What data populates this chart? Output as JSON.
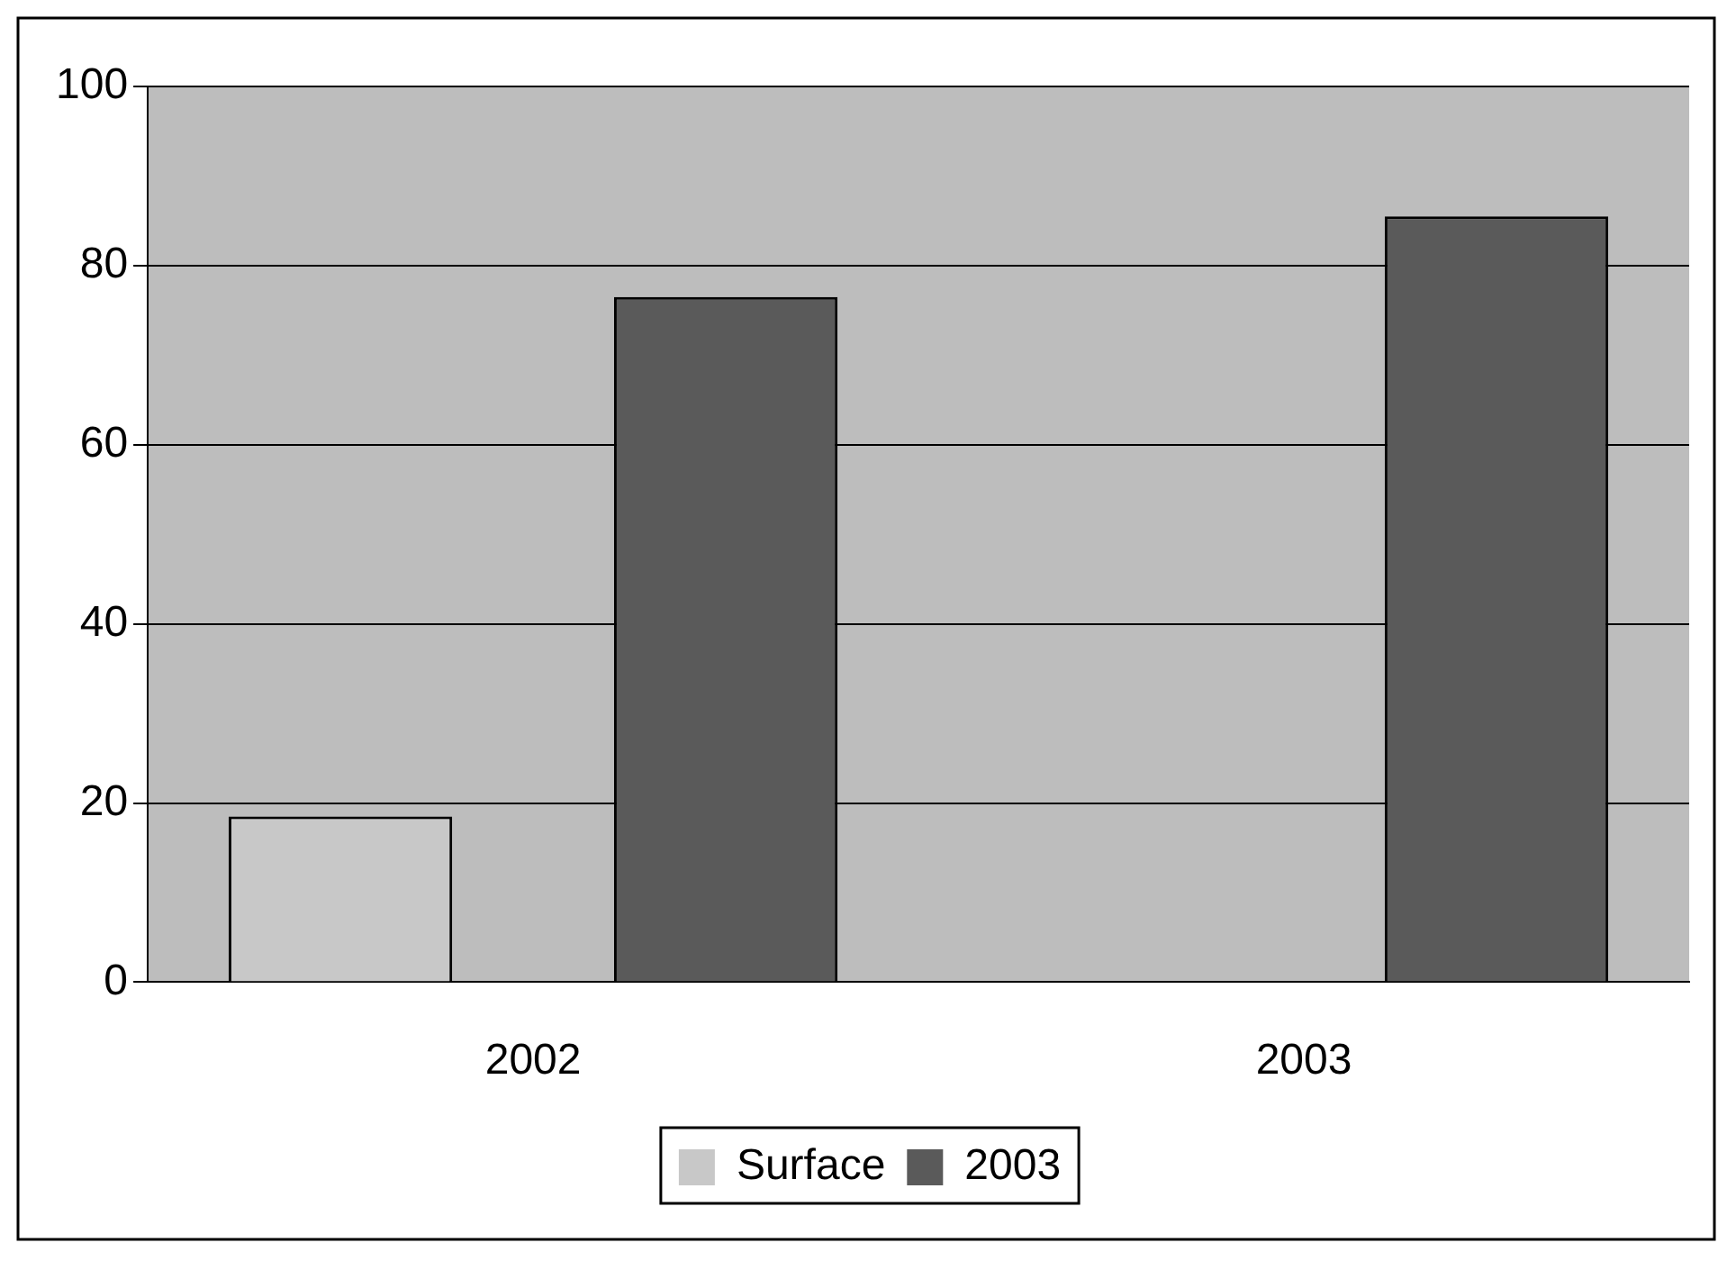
{
  "chart_data": {
    "type": "bar",
    "categories": [
      "2002",
      "2003"
    ],
    "series": [
      {
        "name": "Surface",
        "color": "#c8c8c8",
        "values": [
          18.5,
          null
        ]
      },
      {
        "name": "2003",
        "color": "#5a5a5a",
        "values": [
          76.5,
          85.5
        ]
      }
    ],
    "ylim": [
      0,
      100
    ],
    "yticks": [
      0,
      20,
      40,
      60,
      80,
      100
    ],
    "grid": "y",
    "legend": "bottom"
  }
}
